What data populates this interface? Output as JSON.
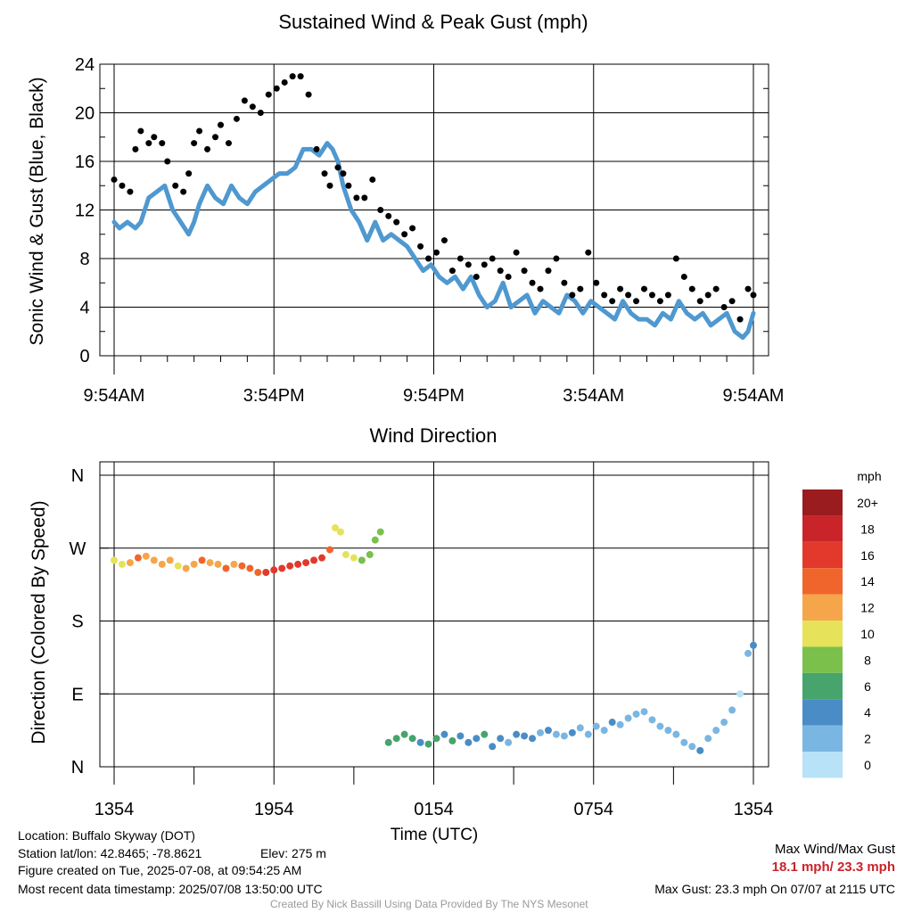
{
  "chart_data": [
    {
      "type": "scatter",
      "title": "Sustained Wind & Peak Gust (mph)",
      "ylabel": "Sonic Wind & Gust (Blue, Black)",
      "xlabel": "",
      "x_tick_labels": [
        "9:54AM",
        "3:54PM",
        "9:54PM",
        "3:54AM",
        "9:54AM"
      ],
      "x_range_hours": [
        0,
        24
      ],
      "ylim": [
        0,
        24
      ],
      "y_ticks": [
        "0",
        "4",
        "8",
        "12",
        "16",
        "20",
        "24"
      ],
      "grid": true,
      "series": [
        {
          "description": "Sustained wind (blue line)",
          "color": "#4f98d0",
          "x_hours": [
            0,
            0.2,
            0.5,
            0.8,
            1.0,
            1.3,
            1.6,
            1.9,
            2.2,
            2.5,
            2.8,
            3.0,
            3.2,
            3.5,
            3.8,
            4.1,
            4.4,
            4.7,
            5.0,
            5.3,
            5.6,
            5.9,
            6.2,
            6.5,
            6.8,
            7.1,
            7.4,
            7.7,
            8.0,
            8.2,
            8.4,
            8.6,
            8.9,
            9.2,
            9.5,
            9.8,
            10.1,
            10.4,
            10.7,
            11.0,
            11.3,
            11.6,
            11.9,
            12.2,
            12.5,
            12.8,
            13.1,
            13.4,
            13.7,
            14.0,
            14.3,
            14.6,
            14.9,
            15.2,
            15.5,
            15.8,
            16.1,
            16.4,
            16.7,
            17.0,
            17.3,
            17.6,
            17.9,
            18.2,
            18.5,
            18.8,
            19.1,
            19.4,
            19.7,
            20.0,
            20.3,
            20.6,
            20.9,
            21.2,
            21.5,
            21.8,
            22.1,
            22.4,
            22.7,
            23.0,
            23.3,
            23.6,
            23.8,
            24.0
          ],
          "values": [
            11,
            10.5,
            11,
            10.5,
            11,
            13,
            13.5,
            14,
            12,
            11,
            10,
            11,
            12.5,
            14,
            13,
            12.5,
            14,
            13,
            12.5,
            13.5,
            14,
            14.5,
            15,
            15,
            15.5,
            17,
            17,
            16.5,
            17.5,
            17,
            16,
            14,
            12,
            11,
            9.5,
            11,
            9.5,
            10,
            9.5,
            9,
            8,
            7,
            7.5,
            6.5,
            6,
            6.5,
            5.5,
            6.5,
            5,
            4,
            4.5,
            6,
            4,
            4.5,
            5,
            3.5,
            4.5,
            4,
            3.5,
            5,
            4.5,
            3.5,
            4.5,
            4,
            3.5,
            3,
            4.5,
            3.5,
            3,
            3,
            2.5,
            3.5,
            3,
            4.5,
            3.5,
            3,
            3.5,
            2.5,
            3,
            3.5,
            2,
            1.5,
            2,
            3.5
          ]
        },
        {
          "description": "Peak gust (black dots)",
          "color": "#000000",
          "x_hours": [
            0,
            0.3,
            0.6,
            0.8,
            1.0,
            1.3,
            1.5,
            1.8,
            2.0,
            2.3,
            2.6,
            2.8,
            3.0,
            3.2,
            3.5,
            3.8,
            4.0,
            4.3,
            4.6,
            4.9,
            5.2,
            5.5,
            5.8,
            6.1,
            6.4,
            6.7,
            7.0,
            7.3,
            7.6,
            7.9,
            8.1,
            8.4,
            8.6,
            8.8,
            9.1,
            9.4,
            9.7,
            10.0,
            10.3,
            10.6,
            10.9,
            11.2,
            11.5,
            11.8,
            12.1,
            12.4,
            12.7,
            13.0,
            13.3,
            13.6,
            13.9,
            14.2,
            14.5,
            14.8,
            15.1,
            15.4,
            15.7,
            16.0,
            16.3,
            16.6,
            16.9,
            17.2,
            17.5,
            17.8,
            18.1,
            18.4,
            18.7,
            19.0,
            19.3,
            19.6,
            19.9,
            20.2,
            20.5,
            20.8,
            21.1,
            21.4,
            21.7,
            22.0,
            22.3,
            22.6,
            22.9,
            23.2,
            23.5,
            23.8,
            24.0
          ],
          "values": [
            14.5,
            14,
            13.5,
            17,
            18.5,
            17.5,
            18,
            17.5,
            16,
            14,
            13.5,
            15,
            17.5,
            18.5,
            17,
            18,
            19,
            17.5,
            19.5,
            21,
            20.5,
            20,
            21.5,
            22,
            22.5,
            23,
            23,
            21.5,
            17,
            15,
            14,
            15.5,
            15,
            14,
            13,
            13,
            14.5,
            12,
            11.5,
            11,
            10,
            10.5,
            9,
            8,
            8.5,
            9.5,
            7,
            8,
            7.5,
            6.5,
            7.5,
            8,
            7,
            6.5,
            8.5,
            7,
            6,
            5.5,
            7,
            8,
            6,
            5,
            5.5,
            8.5,
            6,
            5,
            4.5,
            5.5,
            5,
            4.5,
            5.5,
            5,
            4.5,
            5,
            8,
            6.5,
            5.5,
            4.5,
            5,
            5.5,
            4,
            4.5,
            3,
            5.5,
            5
          ]
        }
      ]
    },
    {
      "type": "scatter",
      "title": "Wind Direction",
      "ylabel": "Direction (Colored By Speed)",
      "xlabel": "Time (UTC)",
      "x_tick_labels": [
        "1354",
        "1954",
        "0154",
        "0754",
        "1354"
      ],
      "x_range_hours": [
        0,
        24
      ],
      "y_tick_labels": [
        "N",
        "E",
        "S",
        "W",
        "N"
      ],
      "ylim": [
        0,
        360
      ],
      "grid": true,
      "points_dir_speed": {
        "x_hours": [
          0,
          0.3,
          0.6,
          0.9,
          1.2,
          1.5,
          1.8,
          2.1,
          2.4,
          2.7,
          3.0,
          3.3,
          3.6,
          3.9,
          4.2,
          4.5,
          4.8,
          5.1,
          5.4,
          5.7,
          6.0,
          6.3,
          6.6,
          6.9,
          7.2,
          7.5,
          7.8,
          8.1,
          8.3,
          8.5,
          8.7,
          9.0,
          9.3,
          9.6,
          9.8,
          10.0,
          10.3,
          10.6,
          10.9,
          11.2,
          11.5,
          11.8,
          12.1,
          12.4,
          12.7,
          13.0,
          13.3,
          13.6,
          13.9,
          14.2,
          14.5,
          14.8,
          15.1,
          15.4,
          15.7,
          16.0,
          16.3,
          16.6,
          16.9,
          17.2,
          17.5,
          17.8,
          18.1,
          18.4,
          18.7,
          19.0,
          19.3,
          19.6,
          19.9,
          20.2,
          20.5,
          20.8,
          21.1,
          21.4,
          21.7,
          22.0,
          22.3,
          22.6,
          22.9,
          23.2,
          23.5,
          23.8,
          24.0
        ],
        "direction_deg": [
          255,
          250,
          252,
          258,
          260,
          255,
          250,
          255,
          248,
          245,
          250,
          255,
          252,
          250,
          245,
          250,
          248,
          245,
          240,
          240,
          243,
          245,
          248,
          250,
          252,
          255,
          258,
          268,
          295,
          290,
          262,
          258,
          255,
          262,
          280,
          290,
          30,
          35,
          40,
          35,
          30,
          28,
          35,
          40,
          32,
          38,
          30,
          35,
          40,
          25,
          35,
          30,
          40,
          38,
          35,
          42,
          45,
          40,
          38,
          42,
          48,
          40,
          50,
          45,
          55,
          52,
          60,
          65,
          68,
          58,
          50,
          45,
          40,
          30,
          25,
          20,
          35,
          45,
          55,
          70,
          90,
          140,
          150
        ],
        "speed_mph": [
          10,
          11,
          13,
          14,
          13,
          12,
          13,
          12,
          11,
          12,
          13,
          14,
          13,
          12,
          14,
          13,
          14,
          15,
          15,
          16,
          16,
          17,
          17,
          16,
          17,
          17,
          16,
          15,
          10,
          11,
          10,
          10,
          9,
          8,
          8,
          9,
          6,
          6,
          7,
          6,
          5,
          6,
          6,
          5,
          6,
          5,
          4,
          5,
          6,
          4,
          5,
          3,
          4,
          5,
          4,
          3,
          4,
          3,
          3,
          4,
          3,
          2,
          3,
          3,
          4,
          3,
          2,
          3,
          2,
          3,
          2,
          3,
          3,
          2,
          2,
          4,
          3,
          2,
          2,
          2,
          1,
          3,
          4
        ]
      },
      "colorbar": {
        "title": "mph",
        "labels": [
          "20+",
          "18",
          "16",
          "14",
          "12",
          "10",
          "8",
          "6",
          "4",
          "2",
          "0"
        ],
        "colors": [
          "#9a1c1f",
          "#c8242a",
          "#e2392c",
          "#f0652c",
          "#f5a64a",
          "#e6e259",
          "#7ac04a",
          "#46a46c",
          "#4a8cc6",
          "#7ab6e2",
          "#b8e2f7"
        ]
      }
    }
  ],
  "footer": {
    "location": "Location: Buffalo Skyway (DOT)",
    "latlon": "Station lat/lon: 42.8465; -78.8621",
    "elev": "Elev: 275 m",
    "created": "Figure created on Tue, 2025-07-08, at 09:54:25 AM",
    "recent": "Most recent data timestamp: 2025/07/08 13:50:00 UTC",
    "max_heading": "Max Wind/Max Gust",
    "max_values": "18.1 mph/ 23.3 mph",
    "max_gust": "Max Gust: 23.3 mph On 07/07 at 2115 UTC",
    "credit": "Created By Nick Bassill Using Data Provided By The NYS Mesonet"
  },
  "colors": {
    "max_values": "#c8242a"
  }
}
